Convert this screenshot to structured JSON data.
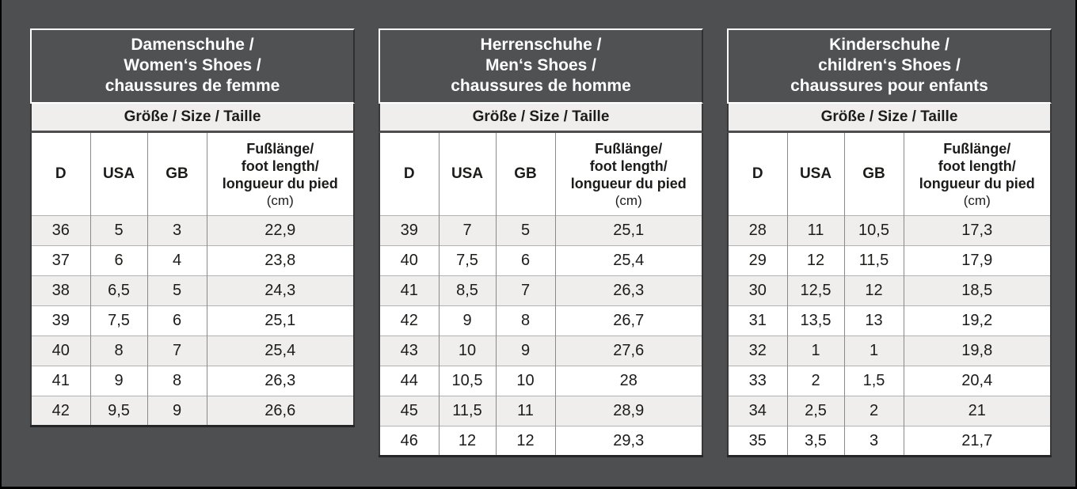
{
  "page": {
    "background_color": "#4d4f51",
    "row_stripe_color": "#efeeec",
    "title_text_color": "#ffffff"
  },
  "tables": [
    {
      "id": "women",
      "title_lines": [
        "Damenschuhe /",
        "Women‘s Shoes /",
        "chaussures de femme"
      ],
      "subtitle": "Größe / Size / Taille",
      "columns": {
        "d": "D",
        "usa": "USA",
        "gb": "GB",
        "foot_lines": [
          "Fußlänge/",
          "foot length/",
          "longueur du pied"
        ],
        "foot_unit": "(cm)"
      },
      "rows": [
        [
          "36",
          "5",
          "3",
          "22,9"
        ],
        [
          "37",
          "6",
          "4",
          "23,8"
        ],
        [
          "38",
          "6,5",
          "5",
          "24,3"
        ],
        [
          "39",
          "7,5",
          "6",
          "25,1"
        ],
        [
          "40",
          "8",
          "7",
          "25,4"
        ],
        [
          "41",
          "9",
          "8",
          "26,3"
        ],
        [
          "42",
          "9,5",
          "9",
          "26,6"
        ]
      ]
    },
    {
      "id": "men",
      "title_lines": [
        "Herrenschuhe /",
        "Men‘s Shoes /",
        "chaussures de homme"
      ],
      "subtitle": "Größe / Size / Taille",
      "columns": {
        "d": "D",
        "usa": "USA",
        "gb": "GB",
        "foot_lines": [
          "Fußlänge/",
          "foot length/",
          "longueur du pied"
        ],
        "foot_unit": "(cm)"
      },
      "rows": [
        [
          "39",
          "7",
          "5",
          "25,1"
        ],
        [
          "40",
          "7,5",
          "6",
          "25,4"
        ],
        [
          "41",
          "8,5",
          "7",
          "26,3"
        ],
        [
          "42",
          "9",
          "8",
          "26,7"
        ],
        [
          "43",
          "10",
          "9",
          "27,6"
        ],
        [
          "44",
          "10,5",
          "10",
          "28"
        ],
        [
          "45",
          "11,5",
          "11",
          "28,9"
        ],
        [
          "46",
          "12",
          "12",
          "29,3"
        ]
      ]
    },
    {
      "id": "children",
      "title_lines": [
        "Kinderschuhe /",
        "children‘s Shoes /",
        "chaussures pour enfants"
      ],
      "subtitle": "Größe / Size / Taille",
      "columns": {
        "d": "D",
        "usa": "USA",
        "gb": "GB",
        "foot_lines": [
          "Fußlänge/",
          "foot length/",
          "longueur du pied"
        ],
        "foot_unit": "(cm)"
      },
      "rows": [
        [
          "28",
          "11",
          "10,5",
          "17,3"
        ],
        [
          "29",
          "12",
          "11,5",
          "17,9"
        ],
        [
          "30",
          "12,5",
          "12",
          "18,5"
        ],
        [
          "31",
          "13,5",
          "13",
          "19,2"
        ],
        [
          "32",
          "1",
          "1",
          "19,8"
        ],
        [
          "33",
          "2",
          "1,5",
          "20,4"
        ],
        [
          "34",
          "2,5",
          "2",
          "21"
        ],
        [
          "35",
          "3,5",
          "3",
          "21,7"
        ]
      ]
    }
  ]
}
